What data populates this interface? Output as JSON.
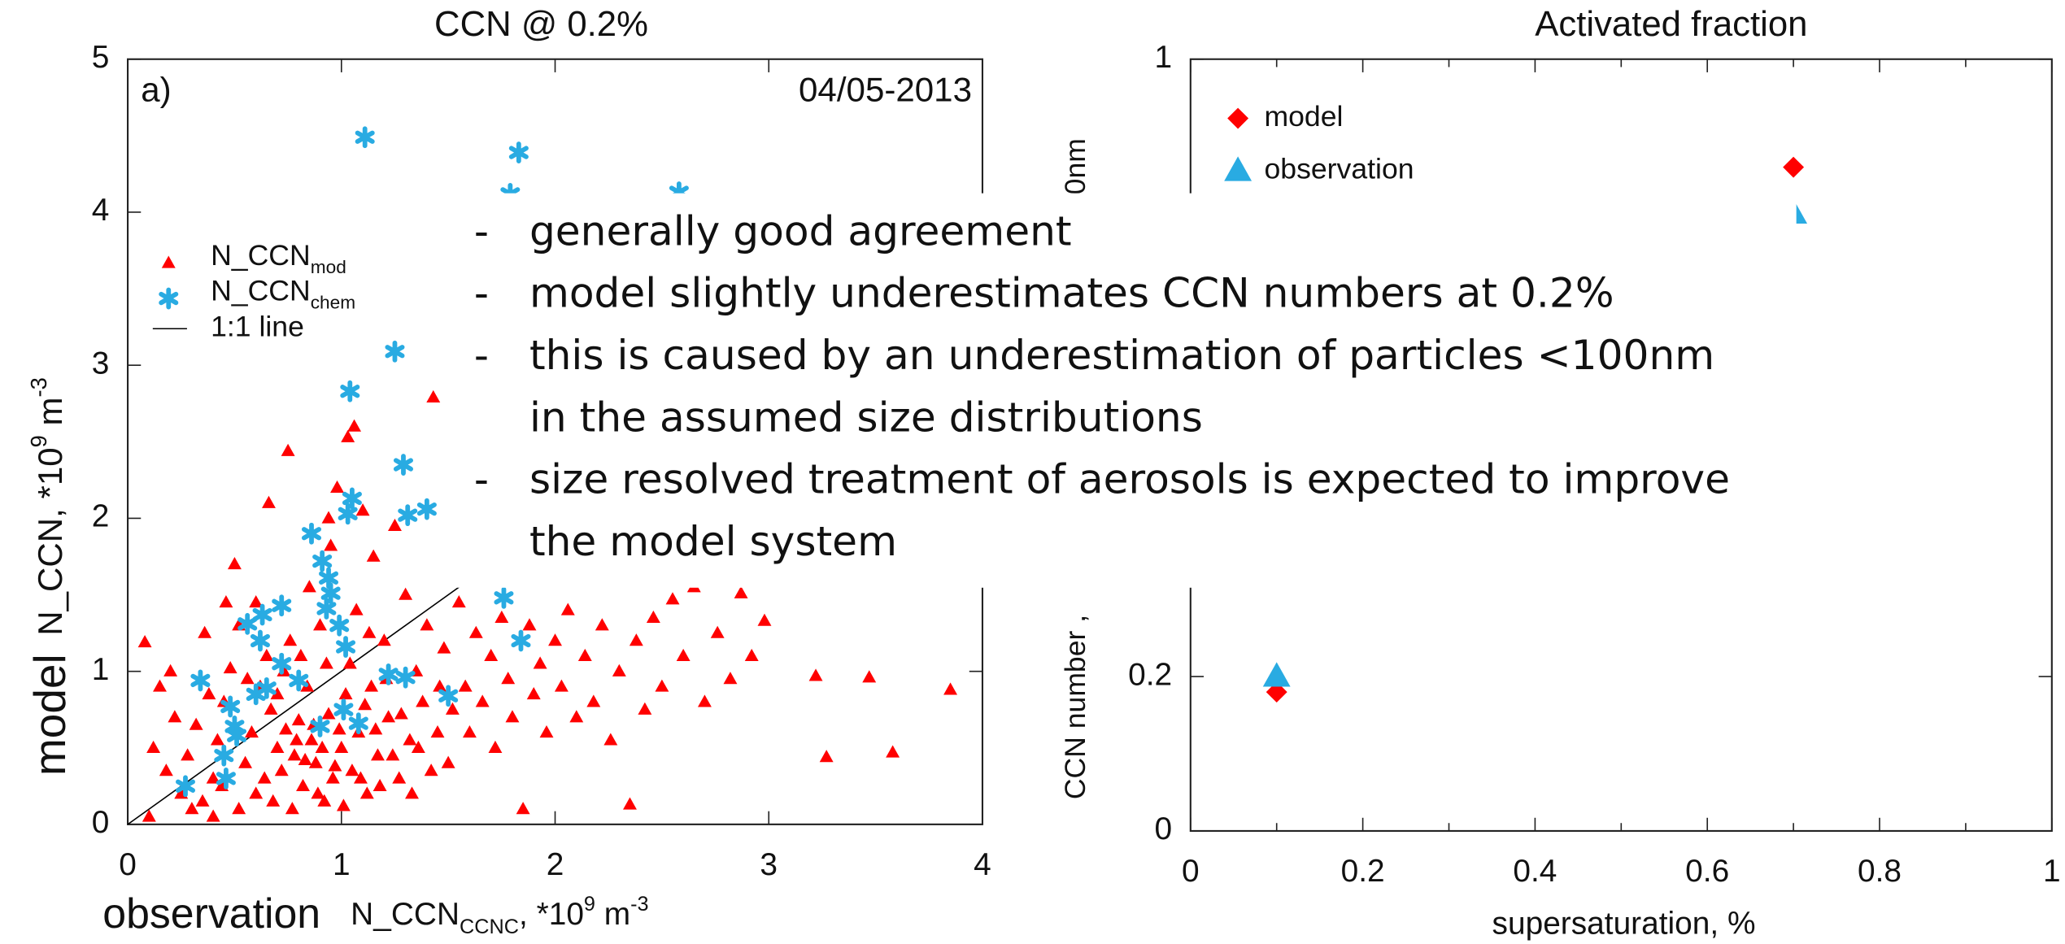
{
  "chart_data": [
    {
      "type": "scatter",
      "title": "CCN @ 0.2%",
      "panel_label": "a)",
      "date": "04/05-2013",
      "xlabel": [
        {
          "text": "observation "
        },
        {
          "text": "N_CCN"
        },
        {
          "text": "CCNC",
          "shift": "sub"
        },
        {
          "text": ", *10"
        },
        {
          "text": "9",
          "shift": "sup"
        },
        {
          "text": " m"
        },
        {
          "text": "-3",
          "shift": "sup"
        }
      ],
      "ylabel": [
        {
          "text": "model"
        },
        {
          "text": "N_CCN, *10"
        },
        {
          "text": "9",
          "shift": "sup"
        },
        {
          "text": " m"
        },
        {
          "text": "-3",
          "shift": "sup"
        }
      ],
      "xlim": [
        0,
        4
      ],
      "ylim": [
        0,
        5
      ],
      "xticks": [
        0,
        1,
        2,
        3,
        4
      ],
      "yticks": [
        0,
        1,
        2,
        3,
        4,
        5
      ],
      "reference_line": {
        "name": "1:1 line",
        "color": "#000000"
      },
      "series": [
        {
          "name": "N_CCN",
          "subscript": "mod",
          "marker": "triangle",
          "color": "#ff0000",
          "x": [
            0.08,
            0.15,
            0.2,
            0.22,
            0.12,
            0.18,
            0.25,
            0.3,
            0.1,
            0.35,
            0.4,
            0.42,
            0.45,
            0.48,
            0.5,
            0.52,
            0.55,
            0.58,
            0.6,
            0.62,
            0.65,
            0.67,
            0.7,
            0.72,
            0.74,
            0.75,
            0.76,
            0.78,
            0.8,
            0.82,
            0.84,
            0.85,
            0.86,
            0.88,
            0.9,
            0.92,
            0.94,
            0.95,
            0.96,
            0.98,
            1.0,
            1.02,
            1.03,
            1.04,
            1.05,
            1.06,
            1.07,
            1.08,
            1.1,
            1.12,
            1.14,
            1.15,
            1.17,
            1.2,
            1.22,
            1.25,
            1.27,
            1.3,
            1.32,
            1.35,
            1.38,
            1.4,
            1.43,
            1.45,
            1.48,
            1.5,
            1.52,
            1.55,
            1.58,
            1.6,
            1.63,
            1.66,
            1.7,
            1.72,
            1.75,
            1.78,
            1.8,
            1.85,
            1.88,
            1.9,
            1.93,
            1.96,
            2.0,
            2.03,
            2.06,
            2.1,
            2.14,
            2.18,
            2.22,
            2.26,
            2.3,
            2.35,
            2.38,
            2.42,
            2.46,
            2.5,
            2.55,
            2.6,
            2.65,
            2.7,
            2.76,
            2.82,
            2.87,
            2.92,
            2.98,
            3.22,
            3.27,
            3.47,
            3.58,
            3.85,
            0.28,
            0.32,
            0.38,
            0.44,
            0.56,
            0.6,
            0.64,
            0.68,
            0.7,
            0.73,
            0.77,
            0.79,
            0.81,
            0.83,
            0.87,
            0.89,
            0.91,
            0.93,
            0.97,
            0.99,
            1.01,
            1.09,
            1.11,
            1.13,
            1.16,
            1.18,
            1.21,
            1.24,
            1.28,
            1.33,
            1.36,
            1.42,
            1.46,
            0.36,
            0.4,
            0.46,
            0.52,
            0.66,
            0.94
          ],
          "values": [
            1.19,
            0.9,
            1.0,
            0.7,
            0.5,
            0.35,
            0.2,
            0.1,
            0.05,
            0.15,
            0.3,
            0.55,
            0.8,
            1.02,
            1.7,
            1.3,
            0.4,
            0.6,
            0.2,
            0.9,
            1.1,
            0.75,
            0.5,
            0.35,
            0.62,
            2.44,
            1.2,
            0.45,
            0.68,
            0.25,
            0.9,
            1.55,
            0.55,
            0.4,
            1.3,
            0.15,
            0.72,
            1.82,
            0.3,
            2.2,
            0.5,
            0.85,
            2.53,
            1.05,
            0.35,
            2.6,
            1.4,
            0.6,
            2.05,
            0.2,
            0.9,
            1.75,
            0.45,
            1.2,
            0.7,
            1.95,
            0.3,
            1.5,
            0.55,
            1.0,
            0.8,
            1.3,
            2.79,
            0.6,
            1.15,
            0.4,
            0.75,
            1.45,
            0.9,
            0.6,
            1.25,
            0.8,
            1.1,
            0.5,
            1.35,
            0.95,
            0.7,
            0.1,
            1.3,
            0.85,
            1.05,
            0.6,
            1.2,
            0.9,
            1.4,
            0.7,
            1.1,
            0.8,
            1.3,
            0.55,
            1.0,
            0.13,
            1.2,
            0.75,
            1.35,
            0.9,
            1.47,
            1.1,
            1.55,
            0.8,
            1.25,
            0.95,
            1.51,
            1.1,
            1.33,
            0.97,
            0.44,
            0.96,
            0.47,
            0.88,
            0.45,
            0.65,
            0.85,
            0.25,
            0.95,
            1.45,
            0.3,
            0.15,
            0.85,
            1.0,
            0.1,
            0.55,
            1.1,
            0.42,
            0.65,
            0.2,
            0.5,
            1.05,
            0.38,
            0.62,
            0.12,
            0.3,
            0.78,
            1.25,
            0.62,
            0.25,
            0.95,
            0.45,
            0.72,
            0.2,
            0.5,
            0.35,
            0.9,
            1.25,
            0.05,
            1.45,
            0.1,
            2.1,
            2.0
          ]
        },
        {
          "name": "N_CCN",
          "subscript": "chem",
          "marker": "asterisk",
          "color": "#29abe2",
          "x": [
            1.11,
            1.83,
            2.58,
            1.79,
            1.25,
            1.04,
            1.29,
            1.05,
            1.4,
            1.31,
            1.03,
            0.86,
            0.91,
            0.94,
            0.95,
            0.93,
            0.72,
            0.63,
            0.56,
            0.62,
            0.99,
            1.02,
            1.76,
            1.84,
            0.72,
            0.65,
            0.6,
            0.8,
            0.34,
            0.48,
            0.5,
            0.9,
            1.01,
            1.08,
            1.22,
            1.3,
            1.5,
            0.45,
            0.46,
            0.51,
            0.27
          ],
          "values": [
            4.49,
            4.39,
            4.13,
            4.12,
            3.09,
            2.83,
            2.35,
            2.13,
            2.06,
            2.02,
            2.03,
            1.9,
            1.72,
            1.61,
            1.51,
            1.41,
            1.43,
            1.37,
            1.31,
            1.2,
            1.3,
            1.16,
            1.48,
            1.2,
            1.05,
            0.89,
            0.85,
            0.94,
            0.94,
            0.77,
            0.64,
            0.64,
            0.75,
            0.66,
            0.98,
            0.96,
            0.84,
            0.45,
            0.3,
            0.58,
            0.25
          ]
        }
      ]
    },
    {
      "type": "scatter",
      "title": "Activated fraction",
      "xlabel": "supersaturation, %",
      "ylabel": "CCN number ,",
      "ylabel_fragment": "0nm",
      "xlim": [
        0,
        1
      ],
      "ylim": [
        0,
        1
      ],
      "xticks": [
        0,
        0.2,
        0.4,
        0.6,
        0.8,
        1
      ],
      "xminorticks": [
        0.1,
        0.3,
        0.5,
        0.7,
        0.9
      ],
      "yticks": [
        0,
        0.2,
        1
      ],
      "legend": "upper left",
      "series": [
        {
          "name": "model",
          "marker": "diamond",
          "color": "#ff0000",
          "x": [
            0.1,
            0.7
          ],
          "values": [
            0.18,
            0.86
          ]
        },
        {
          "name": "observation",
          "marker": "triangle",
          "color": "#29abe2",
          "x": [
            0.1,
            0.7
          ],
          "values": [
            0.2,
            0.8
          ]
        }
      ]
    }
  ],
  "bullets": [
    "generally good agreement",
    "model slightly underestimates CCN numbers at 0.2%",
    "this is caused by an underestimation of particles <100nm",
    "in the assumed size distributions",
    "size resolved treatment of aerosols is expected to improve",
    "the model system"
  ],
  "bullet_dash": "-"
}
